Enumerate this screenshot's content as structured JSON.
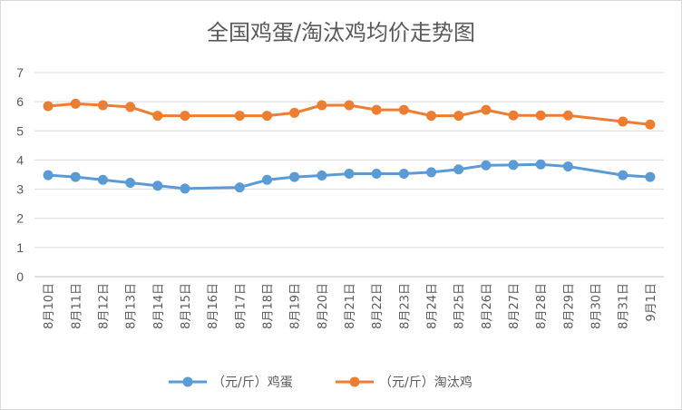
{
  "chart_data": {
    "type": "line",
    "title": "全国鸡蛋/淘汰鸡均价走势图",
    "categories": [
      "8月10日",
      "8月11日",
      "8月12日",
      "8月13日",
      "8月14日",
      "8月15日",
      "8月16日",
      "8月17日",
      "8月18日",
      "8月19日",
      "8月20日",
      "8月21日",
      "8月22日",
      "8月23日",
      "8月24日",
      "8月25日",
      "8月26日",
      "8月27日",
      "8月28日",
      "8月29日",
      "8月30日",
      "8月31日",
      "9月1日"
    ],
    "series": [
      {
        "name": "（元/斤）鸡蛋",
        "color": "#5B9BD5",
        "values": [
          3.48,
          3.42,
          3.32,
          3.22,
          3.12,
          3.02,
          null,
          3.06,
          3.32,
          3.42,
          3.47,
          3.53,
          3.53,
          3.53,
          3.58,
          3.68,
          3.82,
          3.83,
          3.85,
          3.78,
          null,
          3.48,
          3.42
        ]
      },
      {
        "name": "（元/斤）淘汰鸡",
        "color": "#ED7D31",
        "values": [
          5.85,
          5.93,
          5.88,
          5.82,
          5.52,
          5.52,
          null,
          5.52,
          5.52,
          5.62,
          5.88,
          5.88,
          5.72,
          5.72,
          5.52,
          5.52,
          5.72,
          5.53,
          5.53,
          5.53,
          null,
          5.32,
          5.22
        ]
      }
    ],
    "ylim": [
      0,
      7
    ],
    "yticks": [
      "0",
      "1",
      "2",
      "3",
      "4",
      "5",
      "6",
      "7"
    ],
    "grid": true,
    "legend_position": "bottom",
    "xlabel": "",
    "ylabel": ""
  }
}
